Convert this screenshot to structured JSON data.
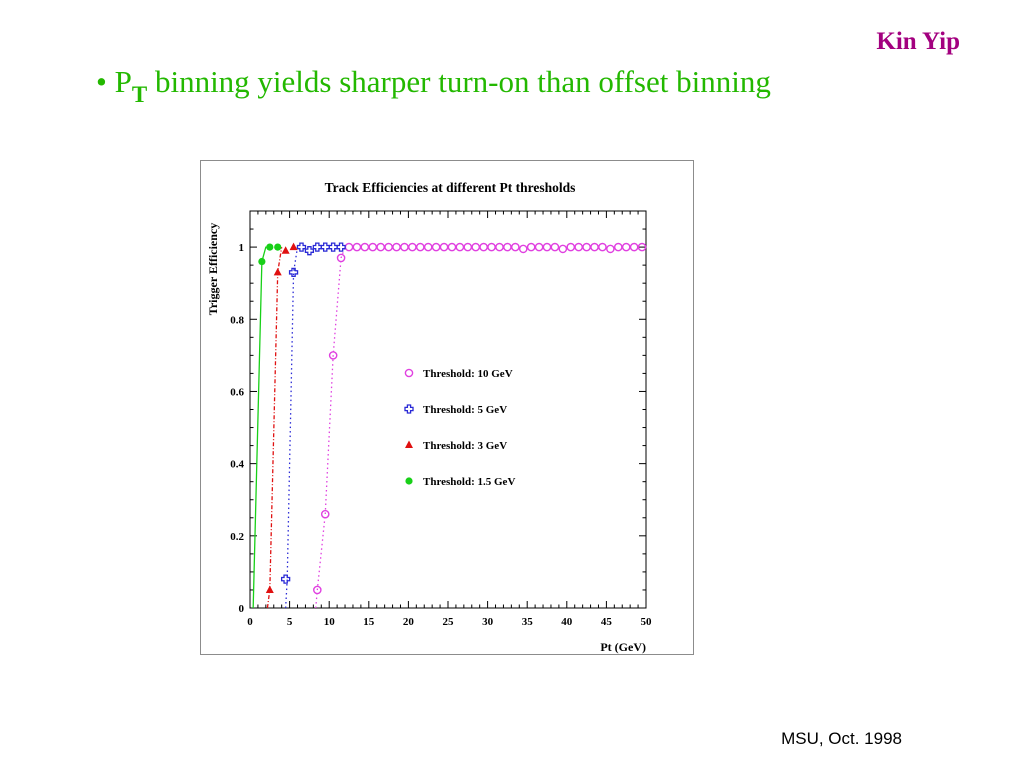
{
  "header": {
    "author": "Kin Yip",
    "bullet_mark": "•",
    "bullet_p": "P",
    "bullet_sub": "T",
    "bullet_rest": " binning yields sharper turn-on than offset binning"
  },
  "footer": {
    "text": "MSU, Oct. 1998"
  },
  "colors": {
    "author": "#a3007f",
    "bullet": "#23b800",
    "threshold_10": "#e040e0",
    "threshold_5": "#2a2ad6",
    "threshold_3": "#e01010",
    "threshold_1_5": "#18d018"
  },
  "chart_data": {
    "type": "scatter",
    "title": "Track Efficiencies at different Pt thresholds",
    "xlabel": "Pt (GeV)",
    "ylabel": "Trigger Efficiency",
    "xlim": [
      0,
      50
    ],
    "ylim": [
      0,
      1.1
    ],
    "xticks": [
      "0",
      "5",
      "10",
      "15",
      "20",
      "25",
      "30",
      "35",
      "40",
      "45",
      "50"
    ],
    "yticks": [
      "0",
      "0.2",
      "0.4",
      "0.6",
      "0.8",
      "1"
    ],
    "grid": false,
    "legend_position": "center-right",
    "series": [
      {
        "name": "Threshold: 10  GeV",
        "marker": "open-circle",
        "line": "dotted",
        "color": "#e040e0",
        "curve_x": [
          8.3,
          8.5,
          9.5,
          10.5,
          11.5,
          12.0
        ],
        "curve_y": [
          0,
          0.05,
          0.26,
          0.7,
          0.97,
          1.0
        ],
        "x": [
          8.5,
          9.5,
          10.5,
          11.5,
          12.5,
          13.5,
          14.5,
          15.5,
          16.5,
          17.5,
          18.5,
          19.5,
          20.5,
          21.5,
          22.5,
          23.5,
          24.5,
          25.5,
          26.5,
          27.5,
          28.5,
          29.5,
          30.5,
          31.5,
          32.5,
          33.5,
          34.5,
          35.5,
          36.5,
          37.5,
          38.5,
          39.5,
          40.5,
          41.5,
          42.5,
          43.5,
          44.5,
          45.5,
          46.5,
          47.5,
          48.5,
          49.5
        ],
        "y": [
          0.05,
          0.26,
          0.7,
          0.97,
          1.0,
          1.0,
          1.0,
          1.0,
          1.0,
          1.0,
          1.0,
          1.0,
          1.0,
          1.0,
          1.0,
          1.0,
          1.0,
          1.0,
          1.0,
          1.0,
          1.0,
          1.0,
          1.0,
          1.0,
          1.0,
          1.0,
          0.995,
          1.0,
          1.0,
          1.0,
          1.0,
          0.995,
          1.0,
          1.0,
          1.0,
          1.0,
          1.0,
          0.995,
          1.0,
          1.0,
          1.0,
          1.0
        ]
      },
      {
        "name": "Threshold:  5  GeV",
        "marker": "open-cross",
        "line": "dotted",
        "color": "#2a2ad6",
        "curve_x": [
          4.5,
          4.7,
          5.5,
          6.0
        ],
        "curve_y": [
          0,
          0.08,
          0.93,
          1.0
        ],
        "x": [
          4.5,
          5.5,
          6.5,
          7.5,
          8.5,
          9.5,
          10.5,
          11.5
        ],
        "y": [
          0.08,
          0.93,
          1.0,
          0.99,
          1.0,
          1.0,
          1.0,
          1.0
        ]
      },
      {
        "name": "Threshold:  3  GeV",
        "marker": "filled-triangle",
        "line": "dash-dot",
        "color": "#e01010",
        "curve_x": [
          2.2,
          2.5,
          3.5,
          4.0
        ],
        "curve_y": [
          0,
          0.05,
          0.93,
          1.0
        ],
        "x": [
          2.5,
          3.5,
          4.5,
          5.5
        ],
        "y": [
          0.05,
          0.93,
          0.99,
          1.0
        ]
      },
      {
        "name": "Threshold: 1.5 GeV",
        "marker": "filled-circle",
        "line": "solid",
        "color": "#18d018",
        "curve_x": [
          0.4,
          1.5,
          2.0,
          2.5
        ],
        "curve_y": [
          0,
          0.96,
          1.0,
          1.0
        ],
        "x": [
          1.5,
          2.5,
          3.5
        ],
        "y": [
          0.96,
          1.0,
          1.0
        ]
      }
    ]
  }
}
